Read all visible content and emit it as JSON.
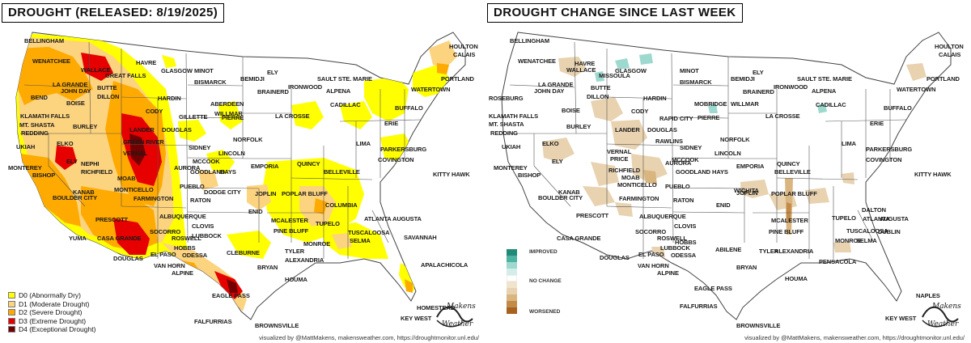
{
  "colors": {
    "D0": "#ffff00",
    "D1": "#fcd37f",
    "D2": "#ffaa00",
    "D3": "#e60000",
    "D4": "#730000",
    "worsened_1": "#e8d2b0",
    "worsened_2": "#d9b57f",
    "worsened_3": "#c48b48",
    "improved": "#9ed9d0",
    "improved_dark": "#2a9a86",
    "state_border": "#555555",
    "background": "#ffffff"
  },
  "left_map": {
    "title": "DROUGHT (RELEASED: 8/19/2025)",
    "legend": [
      {
        "code": "D0",
        "label": "D0 (Abnormally Dry)",
        "color": "#ffff00"
      },
      {
        "code": "D1",
        "label": "D1 (Moderate Drought)",
        "color": "#fcd37f"
      },
      {
        "code": "D2",
        "label": "D2 (Severe Drought)",
        "color": "#ffaa00"
      },
      {
        "code": "D3",
        "label": "D3 (Extreme Drought)",
        "color": "#e60000"
      },
      {
        "code": "D4",
        "label": "D4 (Exceptional Drought)",
        "color": "#730000"
      }
    ],
    "credit": "visualized by @MattMakens, makensweather.com, https://droughtmonitor.unl.edu/",
    "brand_top": "Makens",
    "brand_bottom": "Weather"
  },
  "right_map": {
    "title": "DROUGHT CHANGE SINCE LAST WEEK",
    "legend_improved": "IMPROVED",
    "legend_no_change": "NO CHANGE",
    "legend_worsened": "WORSENED",
    "credit": "visualized by @MattMakens, makensweather.com, https://droughtmonitor.unl.edu/",
    "brand_top": "Makens",
    "brand_bottom": "Weather"
  },
  "left_cities": [
    "BELLINGHAM",
    "WENATCHEE",
    "WALLACE",
    "GREAT FALLS",
    "HAVRE",
    "GLASGOW",
    "MINOT",
    "BISMARCK",
    "BEMIDJI",
    "ELY",
    "BRAINERD",
    "IRONWOOD",
    "SAULT STE. MARIE",
    "HOULTON",
    "CALAIS",
    "PORTLAND",
    "LA GRANDE",
    "JOHN DAY",
    "BEND",
    "BOISE",
    "BUTTE",
    "DILLON",
    "HARDIN",
    "ABERDEEN",
    "WILLMAR",
    "ALPENA",
    "CADILLAC",
    "WATERTOWN",
    "BUFFALO",
    "KLAMATH FALLS",
    "MT. SHASTA",
    "REDDING",
    "BURLEY",
    "CODY",
    "GILLETTE",
    "PIERRE",
    "LA CROSSE",
    "ERIE",
    "UKIAH",
    "ELKO",
    "LANDER",
    "DOUGLAS",
    "NORFOLK",
    "LIMA",
    "PARKERSBURG",
    "GREEN RIVER",
    "VERNAL",
    "SIDNEY",
    "LINCOLN",
    "COVINGTON",
    "MONTEREY",
    "BISHOP",
    "ELY",
    "NEPHI",
    "RICHFIELD",
    "MOAB",
    "AURORA",
    "MCCOOK",
    "GOODLAND",
    "HAYS",
    "EMPORIA",
    "QUINCY",
    "BELLEVILLE",
    "KITTY HAWK",
    "KANAB",
    "MONTICELLO",
    "PUEBLO",
    "BOULDER CITY",
    "FARMINGTON",
    "RATON",
    "DODGE CITY",
    "JOPLIN",
    "POPLAR BLUFF",
    "PRESCOTT",
    "ALBUQUERQUE",
    "ENID",
    "COLUMBIA",
    "TUPELO",
    "ATLANTA",
    "AUGUSTA",
    "CLOVIS",
    "LUBBOCK",
    "MCALESTER",
    "PINE BLUFF",
    "SAVANNAH",
    "YUMA",
    "CASA GRANDE",
    "SOCORRO",
    "ROSWELL",
    "HOBBS",
    "TUSCALOOSA",
    "SELMA",
    "DOUGLAS",
    "EL PASO",
    "ODESSA",
    "CLEBURNE",
    "TYLER",
    "MONROE",
    "VAN HORN",
    "ALPINE",
    "BRYAN",
    "ALEXANDRIA",
    "APALACHICOLA",
    "HOUMA",
    "EAGLE PASS",
    "HOMESTEAD",
    "FALFURRIAS",
    "KEY WEST",
    "BROWNSVILLE"
  ],
  "right_cities": [
    "BELLINGHAM",
    "WENATCHEE",
    "HAVRE",
    "GLASGOW",
    "MINOT",
    "BISMARCK",
    "BEMIDJI",
    "ELY",
    "BRAINERD",
    "IRONWOOD",
    "SAULT STE. MARIE",
    "HOULTON",
    "CALAIS",
    "PORTLAND",
    "WALLACE",
    "MISSOULA",
    "LA GRANDE",
    "JOHN DAY",
    "BUTTE",
    "DILLON",
    "HARDIN",
    "MOBRIDGE",
    "WILLMAR",
    "ALPENA",
    "CADILLAC",
    "WATERTOWN",
    "BUFFALO",
    "ROSEBURG",
    "KLAMATH FALLS",
    "MT. SHASTA",
    "REDDING",
    "BOISE",
    "BURLEY",
    "CODY",
    "RAPID CITY",
    "PIERRE",
    "LA CROSSE",
    "ERIE",
    "UKIAH",
    "ELKO",
    "LANDER",
    "DOUGLAS",
    "RAWLINS",
    "NORFOLK",
    "LIMA",
    "PARKERSBURG",
    "SIDNEY",
    "LINCOLN",
    "COVINGTON",
    "MONTEREY",
    "BISHOP",
    "ELY",
    "VERNAL",
    "PRICE",
    "RICHFIELD",
    "MOAB",
    "MONTICELLO",
    "AURORA",
    "MCCOOK",
    "GOODLAND",
    "HAYS",
    "EMPORIA",
    "QUINCY",
    "BELLEVILLE",
    "KITTY HAWK",
    "KANAB",
    "PUEBLO",
    "WICHITA",
    "BOULDER CITY",
    "FARMINGTON",
    "RATON",
    "JOPLIN",
    "POPLAR BLUFF",
    "DALTON",
    "ATLANTA",
    "AUGUSTA",
    "PRESCOTT",
    "ALBUQUERQUE",
    "ENID",
    "TUPELO",
    "CLOVIS",
    "MCALESTER",
    "PINE BLUFF",
    "TUSCALOOSA",
    "DUBLIN",
    "CASA GRANDE",
    "SOCORRO",
    "ROSWELL",
    "LUBBOCK",
    "HOBBS",
    "ABILENE",
    "MONROE",
    "SELMA",
    "DOUGLAS",
    "EL PASO",
    "ODESSA",
    "TYLER",
    "ALEXANDRIA",
    "PENSACOLA",
    "VAN HORN",
    "ALPINE",
    "BRYAN",
    "HOUMA",
    "EAGLE PASS",
    "NAPLES",
    "FALFURRIAS",
    "KEY WEST",
    "BROWNSVILLE"
  ]
}
